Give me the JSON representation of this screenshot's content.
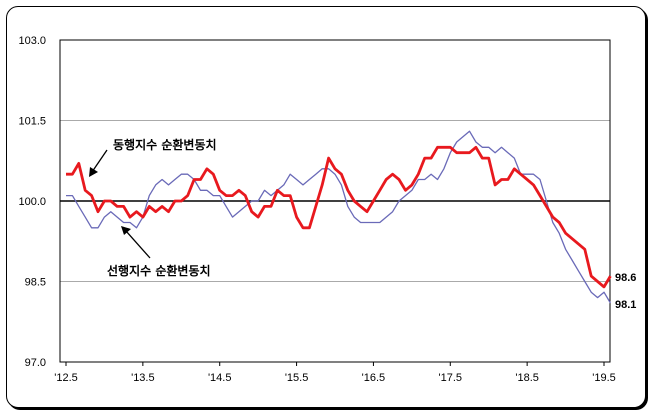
{
  "chart_data": {
    "type": "line",
    "x_ticks": [
      "'12.5",
      "'13.5",
      "'14.5",
      "'15.5",
      "'16.5",
      "'17.5",
      "'18.5",
      "'19.5"
    ],
    "y_ticks": [
      "103.0",
      "101.5",
      "100.0",
      "98.5",
      "97.0"
    ],
    "ylim": [
      97.0,
      103.0
    ],
    "reference_line": 100.0,
    "grid": "horizontal",
    "annotations": [
      {
        "text": "동행지수 순환변동치",
        "series": "coincident"
      },
      {
        "text": "선행지수 순환변동치",
        "series": "leading"
      }
    ],
    "end_labels": {
      "coincident": "98.6",
      "leading": "98.1"
    },
    "series": [
      {
        "key": "coincident",
        "color": "#e8191e",
        "values": [
          100.5,
          100.5,
          100.7,
          100.2,
          100.1,
          99.8,
          100.0,
          100.0,
          99.9,
          99.9,
          99.7,
          99.8,
          99.7,
          99.9,
          99.8,
          99.9,
          99.8,
          100.0,
          100.0,
          100.1,
          100.4,
          100.4,
          100.6,
          100.5,
          100.2,
          100.1,
          100.1,
          100.2,
          100.1,
          99.8,
          99.7,
          99.9,
          99.9,
          100.2,
          100.1,
          100.1,
          99.7,
          99.5,
          99.5,
          99.9,
          100.3,
          100.8,
          100.6,
          100.5,
          100.2,
          100.0,
          99.9,
          99.8,
          100.0,
          100.2,
          100.4,
          100.5,
          100.4,
          100.2,
          100.3,
          100.5,
          100.8,
          100.8,
          101.0,
          101.0,
          101.0,
          100.9,
          100.9,
          100.9,
          101.0,
          100.8,
          100.8,
          100.3,
          100.4,
          100.4,
          100.6,
          100.5,
          100.4,
          100.3,
          100.1,
          99.9,
          99.7,
          99.6,
          99.4,
          99.3,
          99.2,
          99.1,
          98.6,
          98.5,
          98.4,
          98.6
        ]
      },
      {
        "key": "leading",
        "color": "#6a6ab8",
        "values": [
          100.1,
          100.1,
          99.9,
          99.7,
          99.5,
          99.5,
          99.7,
          99.8,
          99.7,
          99.6,
          99.6,
          99.5,
          99.7,
          100.1,
          100.3,
          100.4,
          100.3,
          100.4,
          100.5,
          100.5,
          100.4,
          100.2,
          100.2,
          100.1,
          100.1,
          99.9,
          99.7,
          99.8,
          99.9,
          100.0,
          100.0,
          100.2,
          100.1,
          100.2,
          100.3,
          100.5,
          100.4,
          100.3,
          100.4,
          100.5,
          100.6,
          100.6,
          100.5,
          100.3,
          99.9,
          99.7,
          99.6,
          99.6,
          99.6,
          99.6,
          99.7,
          99.8,
          100.0,
          100.1,
          100.2,
          100.4,
          100.4,
          100.5,
          100.4,
          100.6,
          100.9,
          101.1,
          101.2,
          101.3,
          101.1,
          101.0,
          101.0,
          100.9,
          101.0,
          100.9,
          100.8,
          100.5,
          100.5,
          100.5,
          100.4,
          100.0,
          99.6,
          99.4,
          99.1,
          98.9,
          98.7,
          98.5,
          98.3,
          98.2,
          98.3,
          98.1
        ]
      }
    ]
  }
}
